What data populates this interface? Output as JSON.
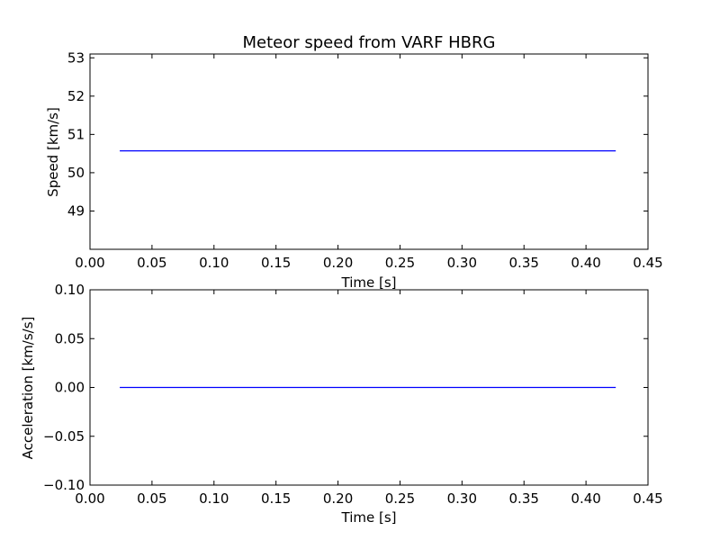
{
  "chart_data": [
    {
      "type": "line",
      "title": "Meteor speed from  VARF HBRG",
      "xlabel": "Time [s]",
      "ylabel": "Speed [km/s]",
      "xlim": [
        0.0,
        0.45
      ],
      "ylim": [
        48.0,
        53.1
      ],
      "xticks": [
        0.0,
        0.05,
        0.1,
        0.15,
        0.2,
        0.25,
        0.3,
        0.35,
        0.4,
        0.45
      ],
      "xtick_labels": [
        "0.00",
        "0.05",
        "0.10",
        "0.15",
        "0.20",
        "0.25",
        "0.30",
        "0.35",
        "0.40",
        "0.45"
      ],
      "yticks": [
        49,
        50,
        51,
        52,
        53
      ],
      "ytick_labels": [
        "49",
        "50",
        "51",
        "52",
        "53"
      ],
      "grid": false,
      "series": [
        {
          "color": "#0000ff",
          "x": [
            0.024,
            0.424
          ],
          "y": [
            50.57,
            50.57
          ]
        }
      ]
    },
    {
      "type": "line",
      "title": "",
      "xlabel": "Time [s]",
      "ylabel": "Acceleration [km/s/s]",
      "xlim": [
        0.0,
        0.45
      ],
      "ylim": [
        -0.1,
        0.1
      ],
      "xticks": [
        0.0,
        0.05,
        0.1,
        0.15,
        0.2,
        0.25,
        0.3,
        0.35,
        0.4,
        0.45
      ],
      "xtick_labels": [
        "0.00",
        "0.05",
        "0.10",
        "0.15",
        "0.20",
        "0.25",
        "0.30",
        "0.35",
        "0.40",
        "0.45"
      ],
      "yticks": [
        -0.1,
        -0.05,
        0.0,
        0.05,
        0.1
      ],
      "ytick_labels": [
        "−0.10",
        "−0.05",
        "0.00",
        "0.05",
        "0.10"
      ],
      "grid": false,
      "series": [
        {
          "color": "#0000ff",
          "x": [
            0.024,
            0.424
          ],
          "y": [
            0.0,
            0.0
          ]
        }
      ]
    }
  ]
}
